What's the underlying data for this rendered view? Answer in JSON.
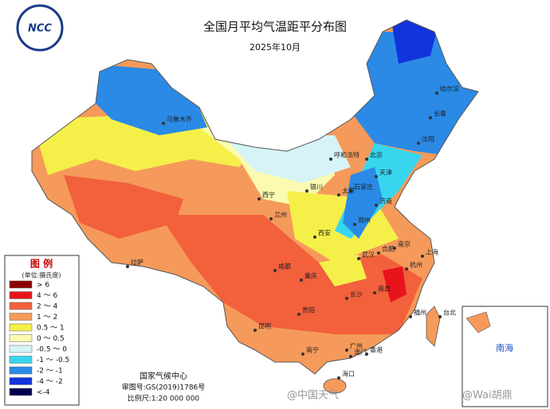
{
  "header": {
    "title": "全国月平均气温距平分布图",
    "subtitle": "2025年10月",
    "logo": "NCC"
  },
  "legend": {
    "title": "图 例",
    "unit": "(单位:摄氏度)",
    "items": [
      {
        "label": "> 6",
        "color": "#8b0000"
      },
      {
        "label": "4 ～ 6",
        "color": "#e8141c"
      },
      {
        "label": "2 ～ 4",
        "color": "#f2603c"
      },
      {
        "label": "1 ～ 2",
        "color": "#f59a5a"
      },
      {
        "label": "0.5 ～ 1",
        "color": "#f5ef4a"
      },
      {
        "label": "0 ～ 0.5",
        "color": "#fafab0"
      },
      {
        "label": "-0.5 ～ 0",
        "color": "#d6f3f7"
      },
      {
        "label": "-1 ～ -0.5",
        "color": "#38d6ee"
      },
      {
        "label": "-2 ～ -1",
        "color": "#2a8ae6"
      },
      {
        "label": "-4 ～ -2",
        "color": "#1234dc"
      },
      {
        "label": "<-4",
        "color": "#000050"
      }
    ]
  },
  "cities": [
    "哈尔滨",
    "长春",
    "沈阳",
    "乌鲁木齐",
    "呼和浩特",
    "北京",
    "天津",
    "石家庄",
    "太原",
    "济南",
    "郑州",
    "西宁",
    "兰州",
    "银川",
    "西安",
    "拉萨",
    "成都",
    "重庆",
    "武汉",
    "合肥",
    "南京",
    "上海",
    "杭州",
    "长沙",
    "南昌",
    "福州",
    "台北",
    "贵阳",
    "昆明",
    "南宁",
    "广州",
    "香港",
    "澳门",
    "海口"
  ],
  "footer": {
    "agency": "国家气候中心",
    "approval": "审图号:GS(2019)1786号",
    "scale": "比例尺:1:20 000 000"
  },
  "inset": {
    "label": "南海"
  },
  "watermarks": [
    "@中国天气",
    "@Wai胡鼎"
  ]
}
